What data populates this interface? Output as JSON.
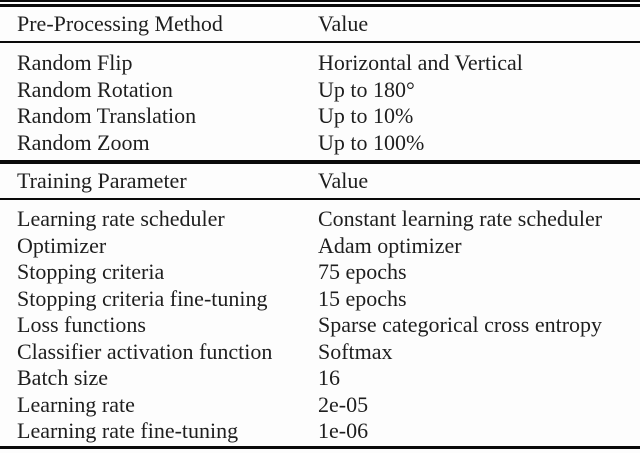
{
  "table": {
    "sections": [
      {
        "header": {
          "col1": "Pre-Processing Method",
          "col2": "Value"
        },
        "rows": [
          {
            "name": "Random Flip",
            "value": "Horizontal and Vertical"
          },
          {
            "name": "Random Rotation",
            "value": "Up to 180°"
          },
          {
            "name": "Random Translation",
            "value": "Up to 10%"
          },
          {
            "name": "Random Zoom",
            "value": "Up to 100%"
          }
        ]
      },
      {
        "header": {
          "col1": "Training Parameter",
          "col2": "Value"
        },
        "rows": [
          {
            "name": "Learning rate scheduler",
            "value": "Constant learning rate scheduler"
          },
          {
            "name": "Optimizer",
            "value": "Adam optimizer"
          },
          {
            "name": "Stopping criteria",
            "value": "75 epochs"
          },
          {
            "name": "Stopping criteria fine-tuning",
            "value": "15 epochs"
          },
          {
            "name": "Loss functions",
            "value": "Sparse categorical cross entropy"
          },
          {
            "name": "Classifier activation function",
            "value": "Softmax"
          },
          {
            "name": "Batch size",
            "value": "16"
          },
          {
            "name": "Learning rate",
            "value": "2e-05"
          },
          {
            "name": "Learning rate fine-tuning",
            "value": "1e-06"
          }
        ]
      }
    ],
    "colors": {
      "text": "#1e1e1e",
      "background": "#fdfdfd",
      "rule": "#0a0a0a"
    }
  }
}
